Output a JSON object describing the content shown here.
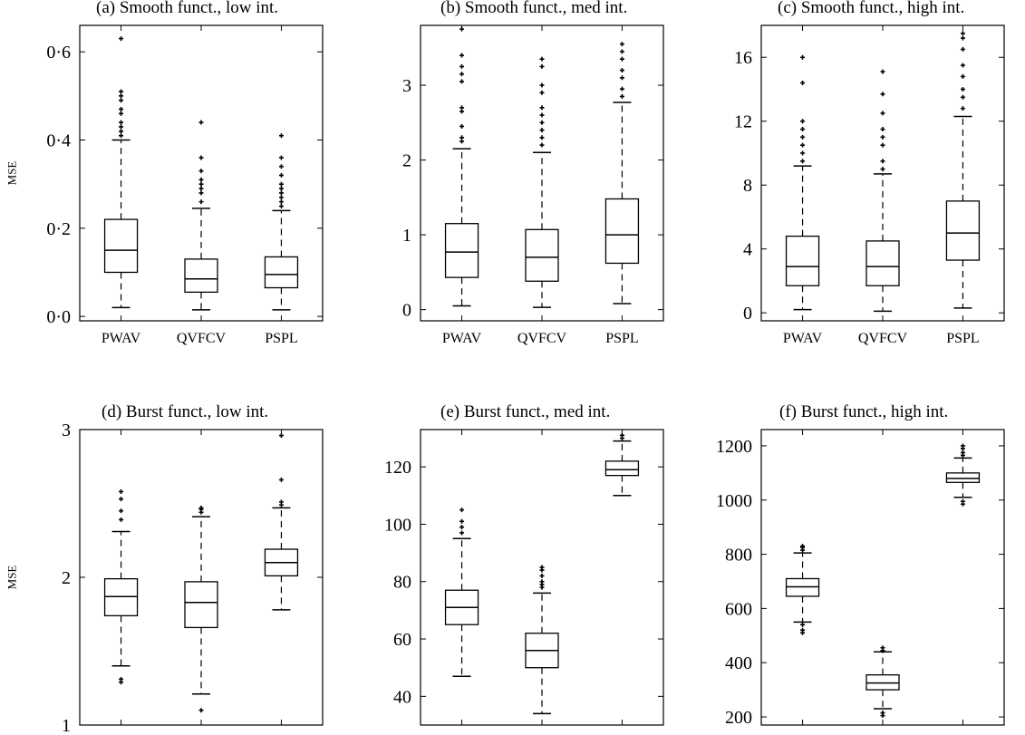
{
  "chart_data": [
    {
      "type": "box",
      "title": "(a) Smooth funct., low int.",
      "ylabel": "MSE",
      "ylim": [
        -0.01,
        0.66
      ],
      "yticks": [
        0,
        0.2,
        0.4,
        0.6
      ],
      "ytick_labels": [
        "0·0",
        "0·2",
        "0·4",
        "0·6"
      ],
      "categories": [
        "PWAV",
        "QVFCV",
        "PSPL"
      ],
      "boxes": [
        {
          "whisker_low": 0.02,
          "q1": 0.1,
          "median": 0.15,
          "q3": 0.22,
          "whisker_high": 0.4,
          "outliers": [
            0.41,
            0.42,
            0.43,
            0.44,
            0.46,
            0.47,
            0.49,
            0.5,
            0.51,
            0.63
          ]
        },
        {
          "whisker_low": 0.015,
          "q1": 0.055,
          "median": 0.085,
          "q3": 0.13,
          "whisker_high": 0.245,
          "outliers": [
            0.26,
            0.28,
            0.29,
            0.3,
            0.31,
            0.33,
            0.36,
            0.44
          ]
        },
        {
          "whisker_low": 0.015,
          "q1": 0.065,
          "median": 0.095,
          "q3": 0.135,
          "whisker_high": 0.24,
          "outliers": [
            0.25,
            0.26,
            0.27,
            0.28,
            0.29,
            0.3,
            0.32,
            0.34,
            0.36,
            0.41
          ]
        }
      ]
    },
    {
      "type": "box",
      "title": "(b) Smooth funct., med int.",
      "ylabel": "",
      "ylim": [
        -0.15,
        3.8
      ],
      "yticks": [
        0,
        1,
        2,
        3
      ],
      "ytick_labels": [
        "0",
        "1",
        "2",
        "3"
      ],
      "categories": [
        "PWAV",
        "QVFCV",
        "PSPL"
      ],
      "boxes": [
        {
          "whisker_low": 0.05,
          "q1": 0.43,
          "median": 0.77,
          "q3": 1.15,
          "whisker_high": 2.15,
          "outliers": [
            2.25,
            2.3,
            2.45,
            2.65,
            2.7,
            3.05,
            3.15,
            3.25,
            3.4,
            3.75
          ]
        },
        {
          "whisker_low": 0.03,
          "q1": 0.38,
          "median": 0.7,
          "q3": 1.07,
          "whisker_high": 2.1,
          "outliers": [
            2.2,
            2.3,
            2.4,
            2.5,
            2.6,
            2.7,
            2.9,
            3.0,
            3.25,
            3.35
          ]
        },
        {
          "whisker_low": 0.08,
          "q1": 0.62,
          "median": 1.0,
          "q3": 1.48,
          "whisker_high": 2.77,
          "outliers": [
            2.85,
            2.95,
            3.1,
            3.2,
            3.35,
            3.45,
            3.55
          ]
        }
      ]
    },
    {
      "type": "box",
      "title": "(c) Smooth funct., high int.",
      "ylabel": "",
      "ylim": [
        -0.5,
        18
      ],
      "yticks": [
        0,
        4,
        8,
        12,
        16
      ],
      "ytick_labels": [
        "0",
        "4",
        "8",
        "12",
        "16"
      ],
      "categories": [
        "PWAV",
        "QVFCV",
        "PSPL"
      ],
      "boxes": [
        {
          "whisker_low": 0.2,
          "q1": 1.7,
          "median": 2.9,
          "q3": 4.8,
          "whisker_high": 9.2,
          "outliers": [
            9.5,
            10.0,
            10.5,
            11.0,
            11.5,
            12.0,
            14.4,
            16.0
          ]
        },
        {
          "whisker_low": 0.1,
          "q1": 1.7,
          "median": 2.9,
          "q3": 4.5,
          "whisker_high": 8.7,
          "outliers": [
            9.0,
            9.5,
            10.5,
            11.0,
            11.5,
            12.5,
            13.7,
            15.1
          ]
        },
        {
          "whisker_low": 0.3,
          "q1": 3.3,
          "median": 5.0,
          "q3": 7.0,
          "whisker_high": 12.3,
          "outliers": [
            12.8,
            13.5,
            14.0,
            14.8,
            15.5,
            16.5,
            17.2,
            17.5
          ]
        }
      ]
    },
    {
      "type": "box",
      "title": "(d) Burst funct., low int.",
      "ylabel": "MSE",
      "ylim": [
        1.0,
        3.0
      ],
      "yticks": [
        1,
        2,
        3
      ],
      "ytick_labels": [
        "1",
        "2",
        "3"
      ],
      "categories": [
        "PWAV",
        "QVFCV",
        "PSPL"
      ],
      "boxes": [
        {
          "whisker_low": 1.4,
          "q1": 1.74,
          "median": 1.87,
          "q3": 1.99,
          "whisker_high": 2.31,
          "outliers": [
            1.29,
            1.31,
            2.39,
            2.45,
            2.53,
            2.58
          ]
        },
        {
          "whisker_low": 1.21,
          "q1": 1.66,
          "median": 1.83,
          "q3": 1.97,
          "whisker_high": 2.41,
          "outliers": [
            1.1,
            2.44,
            2.46,
            2.47
          ]
        },
        {
          "whisker_low": 1.78,
          "q1": 2.01,
          "median": 2.1,
          "q3": 2.19,
          "whisker_high": 2.47,
          "outliers": [
            2.49,
            2.51,
            2.66,
            2.96
          ]
        }
      ]
    },
    {
      "type": "box",
      "title": "(e) Burst funct., med int.",
      "ylabel": "",
      "ylim": [
        30,
        133
      ],
      "yticks": [
        40,
        60,
        80,
        100,
        120
      ],
      "ytick_labels": [
        "40",
        "60",
        "80",
        "100",
        "120"
      ],
      "categories": [
        "PWAV",
        "QVFCV",
        "PSPL"
      ],
      "boxes": [
        {
          "whisker_low": 47,
          "q1": 65,
          "median": 71,
          "q3": 77,
          "whisker_high": 95,
          "outliers": [
            97,
            99,
            101,
            105
          ]
        },
        {
          "whisker_low": 34,
          "q1": 50,
          "median": 56,
          "q3": 62,
          "whisker_high": 76,
          "outliers": [
            78,
            79,
            80,
            82,
            84,
            85
          ]
        },
        {
          "whisker_low": 110,
          "q1": 117,
          "median": 119,
          "q3": 122,
          "whisker_high": 129,
          "outliers": [
            130,
            131
          ]
        }
      ]
    },
    {
      "type": "box",
      "title": "(f) Burst funct., high int.",
      "ylabel": "",
      "ylim": [
        170,
        1260
      ],
      "yticks": [
        200,
        400,
        600,
        800,
        1000,
        1200
      ],
      "ytick_labels": [
        "200",
        "400",
        "600",
        "800",
        "1000",
        "1200"
      ],
      "categories": [
        "PWAV",
        "QVFCV",
        "PSPL"
      ],
      "boxes": [
        {
          "whisker_low": 550,
          "q1": 645,
          "median": 680,
          "q3": 710,
          "whisker_high": 805,
          "outliers": [
            510,
            520,
            540,
            815,
            825,
            830
          ]
        },
        {
          "whisker_low": 230,
          "q1": 300,
          "median": 325,
          "q3": 355,
          "whisker_high": 440,
          "outliers": [
            205,
            215,
            445,
            455
          ]
        },
        {
          "whisker_low": 1010,
          "q1": 1065,
          "median": 1080,
          "q3": 1100,
          "whisker_high": 1155,
          "outliers": [
            985,
            995,
            1165,
            1175,
            1190,
            1200
          ]
        }
      ]
    }
  ]
}
